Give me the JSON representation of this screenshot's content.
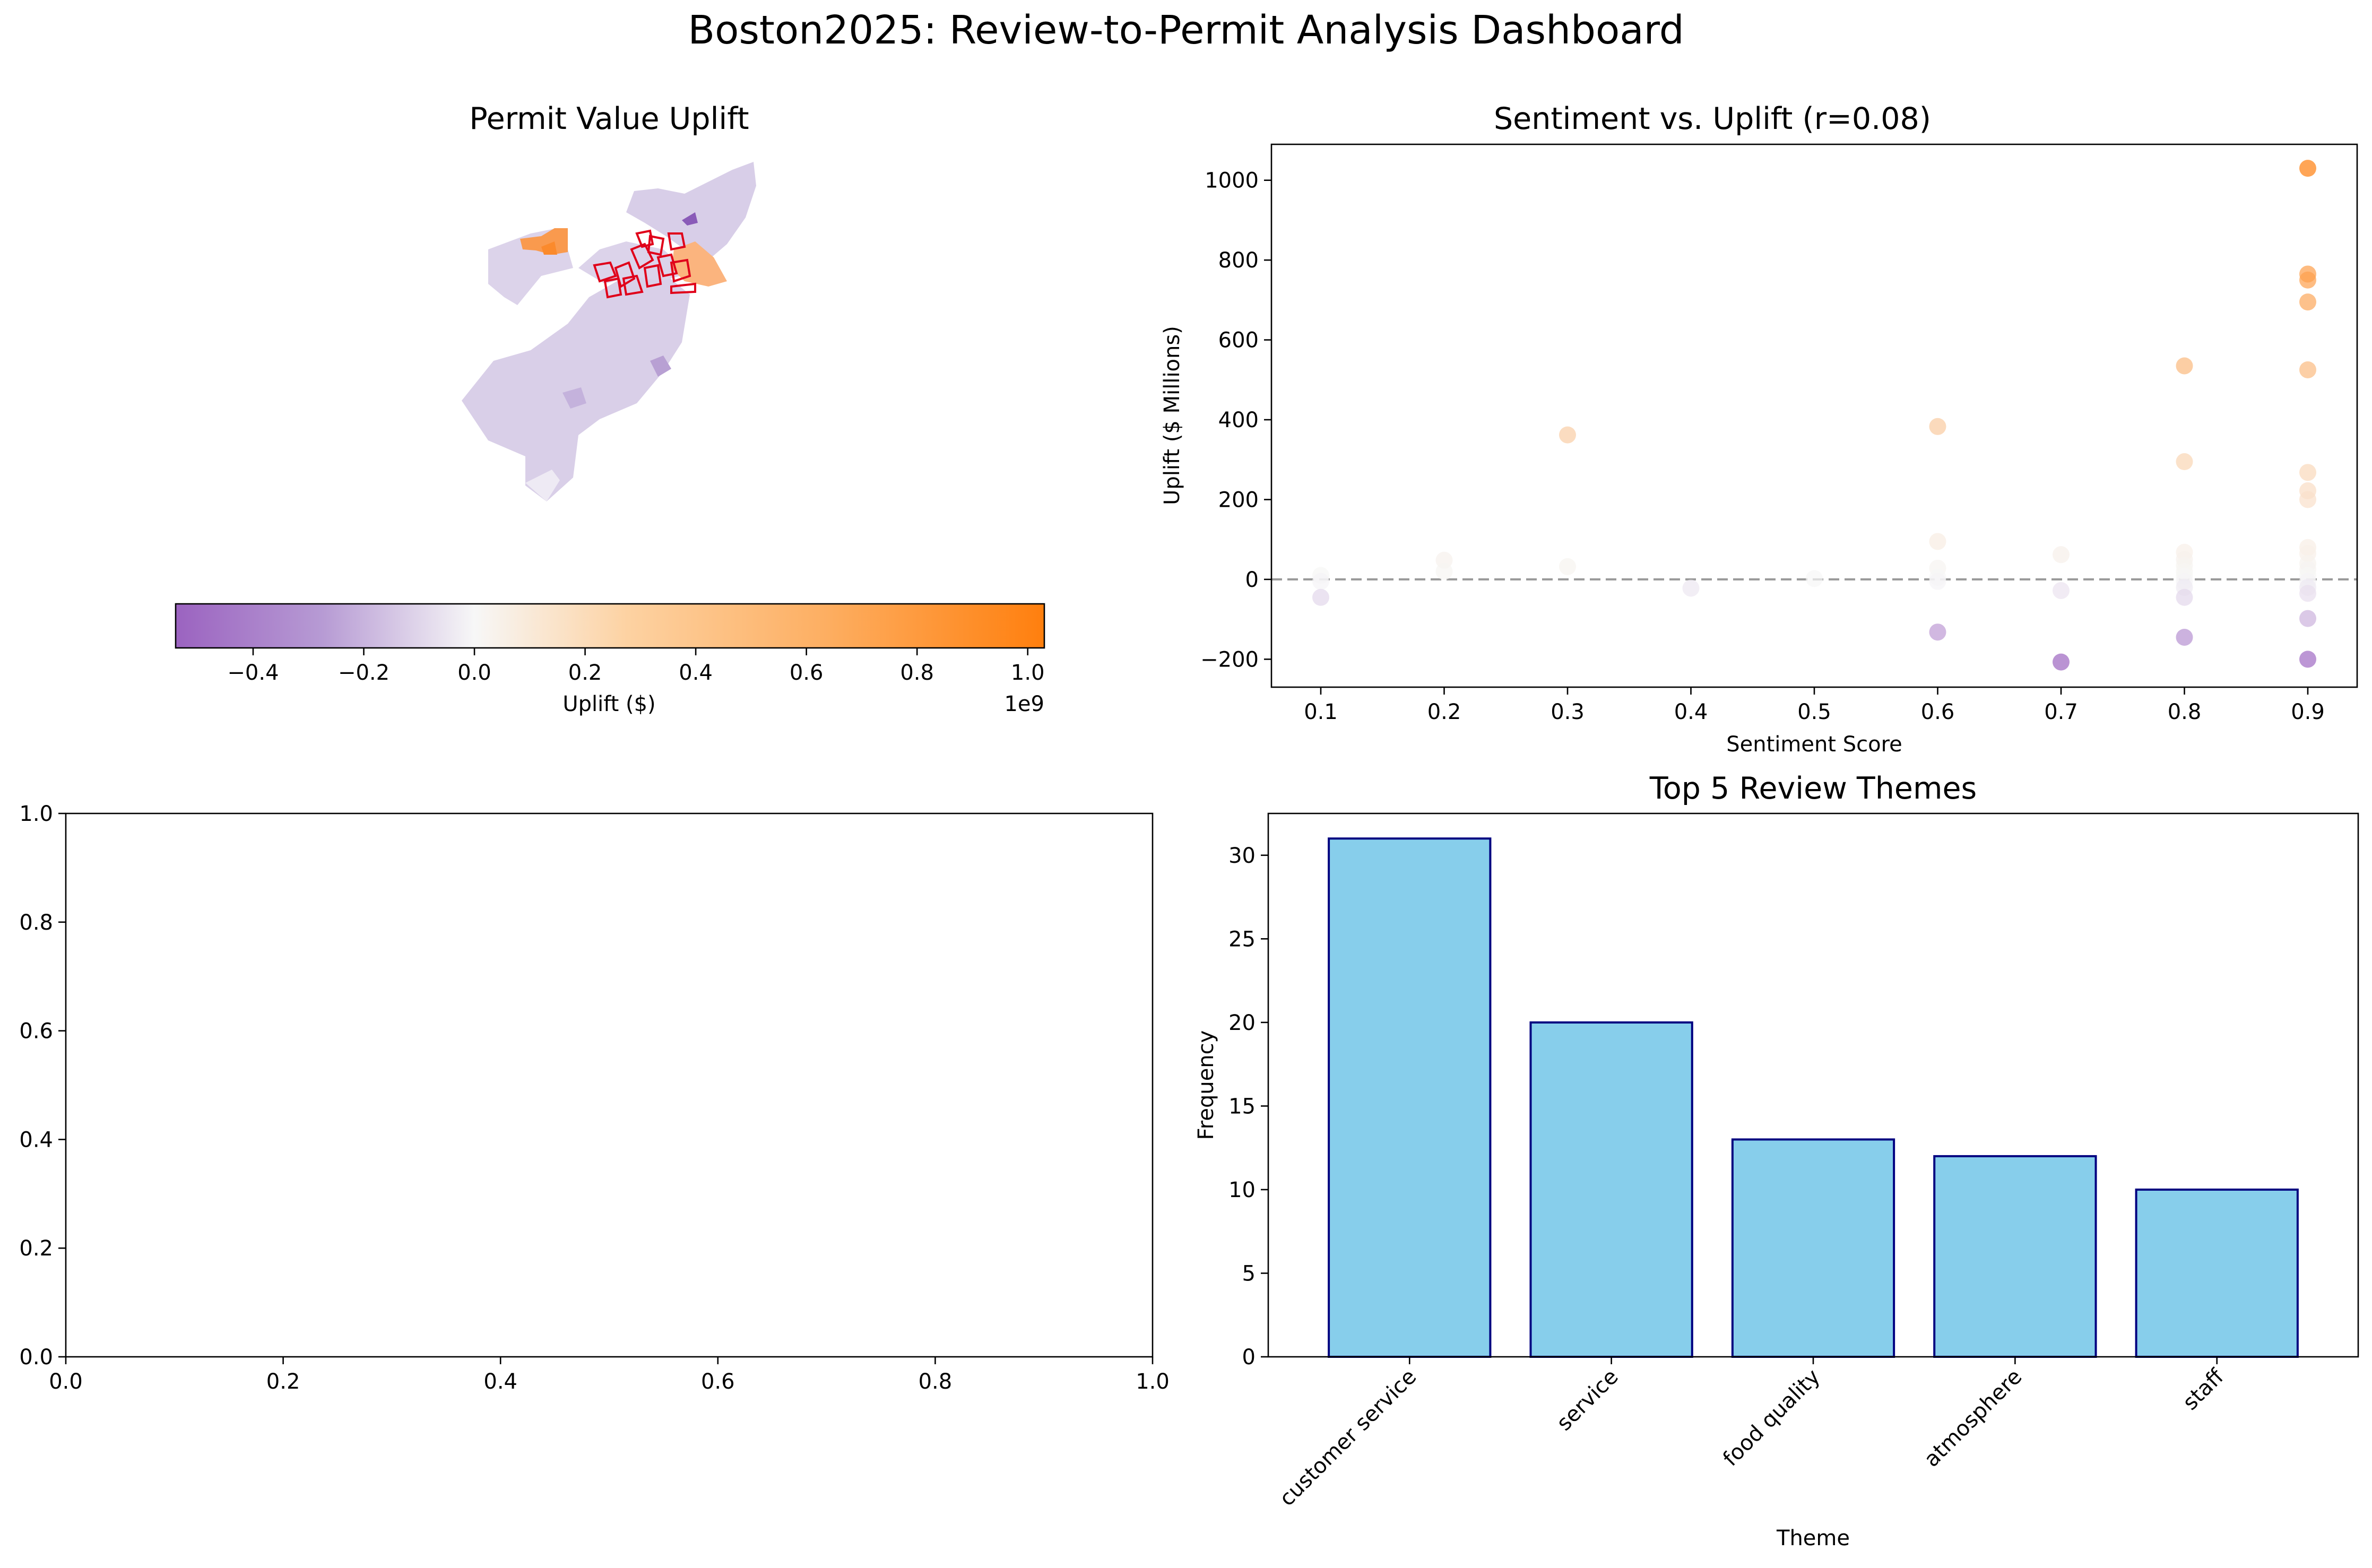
{
  "suptitle": "Boston2025: Review-to-Permit Analysis Dashboard",
  "colors": {
    "purple_end": "#9b63c0",
    "orange_end": "#ff7f0e",
    "neutral": "#f7f7f7",
    "bar_fill": "#87ceeb",
    "bar_edge": "#000080",
    "highlight_outline": "#e0001a",
    "zero_line": "#999999"
  },
  "chart_data": [
    {
      "panel": "map",
      "type": "choropleth",
      "title": "Permit Value Uplift",
      "colorbar": {
        "label": "Uplift ($)",
        "range": [
          -0.54,
          1.03
        ],
        "ticks": [
          -0.4,
          -0.2,
          0.0,
          0.2,
          0.4,
          0.6,
          0.8,
          1.0
        ],
        "tick_labels": [
          "−0.4",
          "−0.2",
          "0.0",
          "0.2",
          "0.4",
          "0.6",
          "0.8",
          "1.0"
        ],
        "offset_text": "1e9",
        "colormap": "PuOr-style diverging (purple = negative, orange = positive)"
      }
    },
    {
      "panel": "scatter",
      "type": "scatter",
      "title": "Sentiment vs. Uplift (r=0.08)",
      "xlabel": "Sentiment Score",
      "ylabel": "Uplift ($ Millions)",
      "xlim": [
        0.06,
        0.94
      ],
      "ylim": [
        -270,
        1090
      ],
      "xticks": [
        0.1,
        0.2,
        0.3,
        0.4,
        0.5,
        0.6,
        0.7,
        0.8,
        0.9
      ],
      "xtick_labels": [
        "0.1",
        "0.2",
        "0.3",
        "0.4",
        "0.5",
        "0.6",
        "0.7",
        "0.8",
        "0.9"
      ],
      "yticks": [
        -200,
        0,
        200,
        400,
        600,
        800,
        1000
      ],
      "ytick_labels": [
        "−200",
        "0",
        "200",
        "400",
        "600",
        "800",
        "1000"
      ],
      "reference_line": {
        "y": 0,
        "style": "dashed"
      },
      "points": [
        {
          "x": 0.1,
          "y": 10
        },
        {
          "x": 0.1,
          "y": -5
        },
        {
          "x": 0.1,
          "y": -45
        },
        {
          "x": 0.2,
          "y": 48
        },
        {
          "x": 0.2,
          "y": 20
        },
        {
          "x": 0.3,
          "y": 362
        },
        {
          "x": 0.3,
          "y": 32
        },
        {
          "x": 0.4,
          "y": -22
        },
        {
          "x": 0.5,
          "y": 2
        },
        {
          "x": 0.6,
          "y": 383
        },
        {
          "x": 0.6,
          "y": 95
        },
        {
          "x": 0.6,
          "y": 28
        },
        {
          "x": 0.6,
          "y": 5
        },
        {
          "x": 0.6,
          "y": -5
        },
        {
          "x": 0.6,
          "y": -132
        },
        {
          "x": 0.7,
          "y": 62
        },
        {
          "x": 0.7,
          "y": -28
        },
        {
          "x": 0.7,
          "y": -207
        },
        {
          "x": 0.8,
          "y": 535
        },
        {
          "x": 0.8,
          "y": 295
        },
        {
          "x": 0.8,
          "y": 68
        },
        {
          "x": 0.8,
          "y": 50
        },
        {
          "x": 0.8,
          "y": 35
        },
        {
          "x": 0.8,
          "y": 20
        },
        {
          "x": 0.8,
          "y": 8
        },
        {
          "x": 0.8,
          "y": -5
        },
        {
          "x": 0.8,
          "y": -20
        },
        {
          "x": 0.8,
          "y": -45
        },
        {
          "x": 0.8,
          "y": -145
        },
        {
          "x": 0.9,
          "y": 1030
        },
        {
          "x": 0.9,
          "y": 765
        },
        {
          "x": 0.9,
          "y": 750
        },
        {
          "x": 0.9,
          "y": 695
        },
        {
          "x": 0.9,
          "y": 525
        },
        {
          "x": 0.9,
          "y": 268
        },
        {
          "x": 0.9,
          "y": 222
        },
        {
          "x": 0.9,
          "y": 200
        },
        {
          "x": 0.9,
          "y": 80
        },
        {
          "x": 0.9,
          "y": 65
        },
        {
          "x": 0.9,
          "y": 40
        },
        {
          "x": 0.9,
          "y": 25
        },
        {
          "x": 0.9,
          "y": 10
        },
        {
          "x": 0.9,
          "y": -5
        },
        {
          "x": 0.9,
          "y": -20
        },
        {
          "x": 0.9,
          "y": -35
        },
        {
          "x": 0.9,
          "y": -98
        },
        {
          "x": 0.9,
          "y": -200
        }
      ]
    },
    {
      "panel": "empty",
      "type": "empty",
      "xlim": [
        0,
        1
      ],
      "ylim": [
        0,
        1
      ],
      "ticks": [
        0.0,
        0.2,
        0.4,
        0.6,
        0.8,
        1.0
      ],
      "tick_labels": [
        "0.0",
        "0.2",
        "0.4",
        "0.6",
        "0.8",
        "1.0"
      ]
    },
    {
      "panel": "bars",
      "type": "bar",
      "title": "Top 5 Review Themes",
      "xlabel": "Theme",
      "ylabel": "Frequency",
      "categories": [
        "customer service",
        "service",
        "food quality",
        "atmosphere",
        "staff"
      ],
      "values": [
        31,
        20,
        13,
        12,
        10
      ],
      "ylim": [
        0,
        32.5
      ],
      "yticks": [
        0,
        5,
        10,
        15,
        20,
        25,
        30
      ],
      "ytick_labels": [
        "0",
        "5",
        "10",
        "15",
        "20",
        "25",
        "30"
      ]
    }
  ]
}
